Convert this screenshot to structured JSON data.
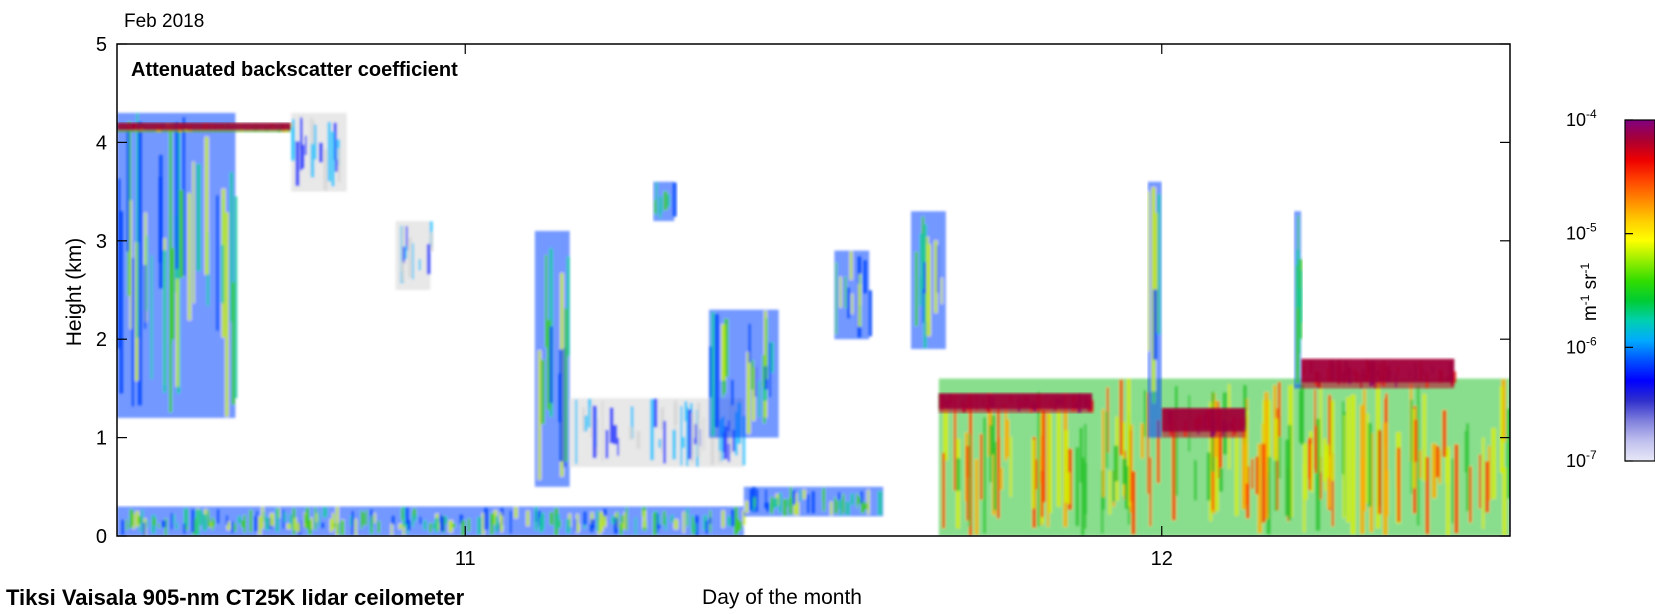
{
  "chart_data": {
    "type": "heatmap",
    "title": "Attenuated backscatter coefficient",
    "date_label": "Feb 2018",
    "footer": "Tiksi Vaisala 905-nm CT25K lidar ceilometer",
    "xlabel": "Day of the month",
    "ylabel": "Height (km)",
    "x_ticks": [
      "11",
      "12"
    ],
    "y_ticks": [
      "0",
      "1",
      "2",
      "3",
      "4",
      "5"
    ],
    "xlim": [
      10.5,
      12.5
    ],
    "ylim": [
      0,
      5
    ],
    "colorbar": {
      "scale": "log",
      "range": [
        1e-07,
        0.0001
      ],
      "tick_labels": [
        "10-7",
        "10-6",
        "10-5",
        "10-4"
      ],
      "unit": "m-1 sr-1",
      "colors": [
        "#e8e8f8",
        "#c0c0ee",
        "#8080dd",
        "#3030cc",
        "#0000ff",
        "#0050ff",
        "#00aaff",
        "#00d0b0",
        "#00cc33",
        "#33dd00",
        "#99ee00",
        "#ffff00",
        "#ffcc00",
        "#ff8800",
        "#ff4400",
        "#ee0000",
        "#aa0033",
        "#800080"
      ]
    },
    "features": [
      {
        "kind": "cloud",
        "x": [
          10.5,
          10.67
        ],
        "y": [
          1.2,
          4.3
        ],
        "level": "medium"
      },
      {
        "kind": "cloud top",
        "x": [
          10.5,
          10.75
        ],
        "y": [
          4.1,
          4.2
        ],
        "level": "high"
      },
      {
        "kind": "virga",
        "x": [
          10.75,
          10.83
        ],
        "y": [
          3.5,
          4.3
        ],
        "level": "low"
      },
      {
        "kind": "cloud",
        "x": [
          10.9,
          10.95
        ],
        "y": [
          2.5,
          3.2
        ],
        "level": "low"
      },
      {
        "kind": "cloud",
        "x": [
          11.1,
          11.15
        ],
        "y": [
          0.5,
          3.1
        ],
        "level": "medium"
      },
      {
        "kind": "cloud",
        "x": [
          11.27,
          11.3
        ],
        "y": [
          3.2,
          3.6
        ],
        "level": "medium"
      },
      {
        "kind": "aerosol",
        "x": [
          11.15,
          11.4
        ],
        "y": [
          0.7,
          1.4
        ],
        "level": "low"
      },
      {
        "kind": "cloud",
        "x": [
          11.35,
          11.45
        ],
        "y": [
          1.0,
          2.3
        ],
        "level": "medium"
      },
      {
        "kind": "cloud",
        "x": [
          11.53,
          11.58
        ],
        "y": [
          2.0,
          2.9
        ],
        "level": "medium"
      },
      {
        "kind": "cloud",
        "x": [
          11.64,
          11.69
        ],
        "y": [
          1.9,
          3.3
        ],
        "level": "medium"
      },
      {
        "kind": "boundary layer",
        "x": [
          10.5,
          11.4
        ],
        "y": [
          0.0,
          0.3
        ],
        "level": "medium"
      },
      {
        "kind": "aerosol",
        "x": [
          11.4,
          11.6
        ],
        "y": [
          0.2,
          0.5
        ],
        "level": "medium"
      },
      {
        "kind": "precipitation",
        "x": [
          11.68,
          12.5
        ],
        "y": [
          0.0,
          1.6
        ],
        "level": "high"
      },
      {
        "kind": "cloud base",
        "x": [
          11.68,
          11.9
        ],
        "y": [
          1.25,
          1.45
        ],
        "level": "very high"
      },
      {
        "kind": "cloud base",
        "x": [
          12.0,
          12.12
        ],
        "y": [
          1.0,
          1.3
        ],
        "level": "very high"
      },
      {
        "kind": "cloud base",
        "x": [
          12.2,
          12.42
        ],
        "y": [
          1.5,
          1.8
        ],
        "level": "very high"
      },
      {
        "kind": "virga",
        "x": [
          11.98,
          12.0
        ],
        "y": [
          1.0,
          3.6
        ],
        "level": "medium"
      },
      {
        "kind": "virga",
        "x": [
          12.19,
          12.2
        ],
        "y": [
          1.5,
          3.3
        ],
        "level": "medium"
      }
    ]
  }
}
